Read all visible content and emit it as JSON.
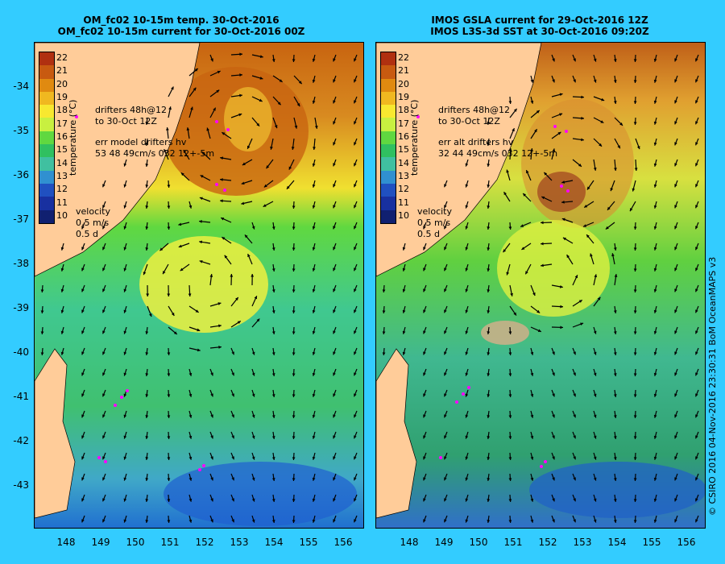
{
  "left_panel": {
    "title_line1": "OM_fc02 10-15m temp. 30-Oct-2016",
    "title_line2": "OM_fc02 10-15m current for 30-Oct-2016 00Z",
    "drifter_note_1": "drifters 48h@12",
    "drifter_note_2": "to 30-Oct 12Z",
    "err_note_1": "err model drifters hv",
    "err_note_2": "53 48 49cm/s 032 12+-5m",
    "velocity_label": "velocity",
    "velocity_value": "0.5 m/s",
    "velocity_days": "0.5 d"
  },
  "right_panel": {
    "title_line1": "IMOS GSLA current for 29-Oct-2016 12Z",
    "title_line2": "IMOS L3S-3d SST at 30-Oct-2016 09:20Z",
    "drifter_note_1": "drifters 48h@12",
    "drifter_note_2": "to 30-Oct 12Z",
    "err_note_1": "err alt drifters hv",
    "err_note_2": "32 44 49cm/s 032 12+-5m",
    "velocity_label": "velocity",
    "velocity_value": "0.5 m/s",
    "velocity_days": "0.5 d"
  },
  "colorbar": {
    "title": "temperature (°C)",
    "ticks": [
      "22",
      "21",
      "20",
      "19",
      "18",
      "17",
      "16",
      "15",
      "14",
      "13",
      "12",
      "11",
      "10"
    ],
    "colors": [
      "#b03010",
      "#c85a10",
      "#e08a10",
      "#f0b820",
      "#f8e830",
      "#c8f040",
      "#60d840",
      "#30c060",
      "#40c0a0",
      "#3090d0",
      "#2050c0",
      "#1830a0",
      "#102070"
    ]
  },
  "latitude_labels": [
    "-34",
    "-35",
    "-36",
    "-37",
    "-38",
    "-39",
    "-40",
    "-41",
    "-42",
    "-43"
  ],
  "longitude_labels": [
    "148",
    "149",
    "150",
    "151",
    "152",
    "153",
    "154",
    "155",
    "156"
  ],
  "credit": "© CSIRO 2016   04-Nov-2016 23:30:31 BoM OceanMAPS v3"
}
